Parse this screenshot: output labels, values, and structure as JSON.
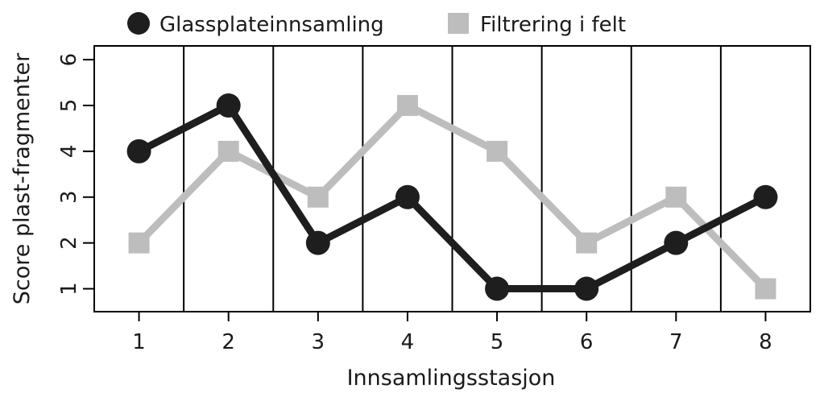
{
  "chart_data": {
    "type": "line",
    "x": [
      1,
      2,
      3,
      4,
      5,
      6,
      7,
      8
    ],
    "x_ticks": [
      "1",
      "2",
      "3",
      "4",
      "5",
      "6",
      "7",
      "8"
    ],
    "y_ticks": [
      "1",
      "2",
      "3",
      "4",
      "5",
      "6"
    ],
    "xlabel": "Innsamlingsstasjon",
    "ylabel": "Score plast-fragmenter",
    "ylim": [
      0.5,
      6.3
    ],
    "grid": "vertical separators between stations",
    "legend_position": "top",
    "series": [
      {
        "name": "Glassplateinnsamling",
        "marker": "circle",
        "color": "#1e1e1e",
        "values": [
          4,
          5,
          2,
          3,
          1,
          1,
          2,
          3
        ]
      },
      {
        "name": "Filtrering i felt",
        "marker": "square",
        "color": "#bdbdbd",
        "values": [
          2,
          4,
          3,
          5,
          4,
          2,
          3,
          1
        ]
      }
    ]
  }
}
